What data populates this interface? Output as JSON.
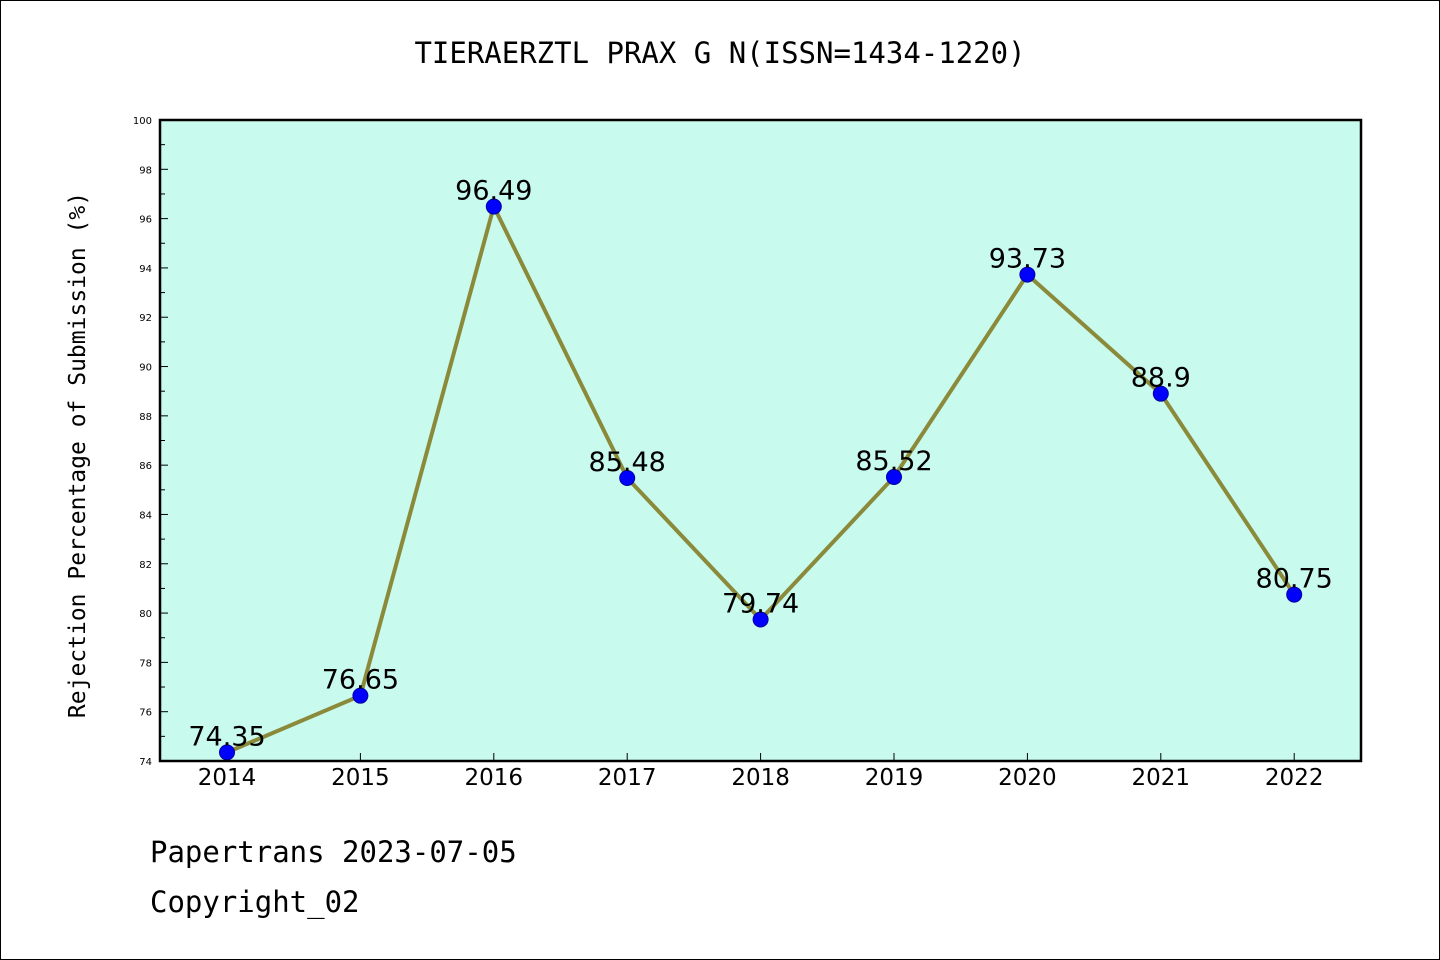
{
  "chart_data": {
    "type": "line",
    "title": "TIERAERZTL PRAX G N(ISSN=1434-1220)",
    "xlabel": "",
    "ylabel": "Rejection Percentage of Submission (%)",
    "x": [
      "2014",
      "2015",
      "2016",
      "2017",
      "2018",
      "2019",
      "2020",
      "2021",
      "2022"
    ],
    "series": [
      {
        "values": [
          74.35,
          76.65,
          96.49,
          85.48,
          79.74,
          85.52,
          93.73,
          88.9,
          80.75
        ],
        "labels": [
          "74.35",
          "76.65",
          "96.49",
          "85.48",
          "79.74",
          "85.52",
          "93.73",
          "88.9",
          "80.75"
        ]
      }
    ],
    "ylim": [
      74,
      100
    ],
    "yticks": [
      "74",
      "76",
      "78",
      "80",
      "82",
      "84",
      "86",
      "88",
      "90",
      "92",
      "94",
      "96",
      "98",
      "100"
    ],
    "grid": false,
    "colors": {
      "plot_background": "#c8faee",
      "line": "#8b8a3a",
      "marker": "#0000ff"
    }
  },
  "footer": {
    "line1": "Papertrans 2023-07-05",
    "line2": "Copyright_02"
  }
}
